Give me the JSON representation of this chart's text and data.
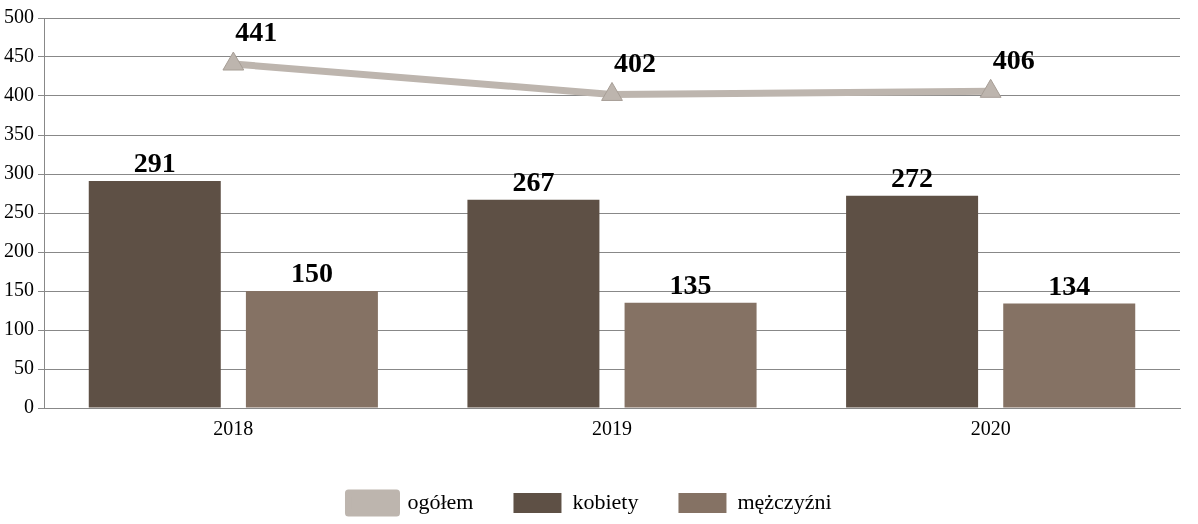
{
  "chart_data": {
    "type": "bar",
    "categories": [
      "2018",
      "2019",
      "2020"
    ],
    "series": [
      {
        "name": "kobiety",
        "color": "#5e5045",
        "values": [
          291,
          267,
          272
        ]
      },
      {
        "name": "mężczyźni",
        "color": "#857264",
        "values": [
          150,
          135,
          134
        ]
      },
      {
        "name": "ogółem",
        "type": "line",
        "color": "#bdb5ae",
        "values": [
          441,
          402,
          406
        ],
        "marker": "triangle"
      }
    ],
    "ylim": [
      0,
      500
    ],
    "yticks": [
      0,
      50,
      100,
      150,
      200,
      250,
      300,
      350,
      400,
      450,
      500
    ],
    "grid": "y",
    "legend": "bottom",
    "data_labels": true
  }
}
